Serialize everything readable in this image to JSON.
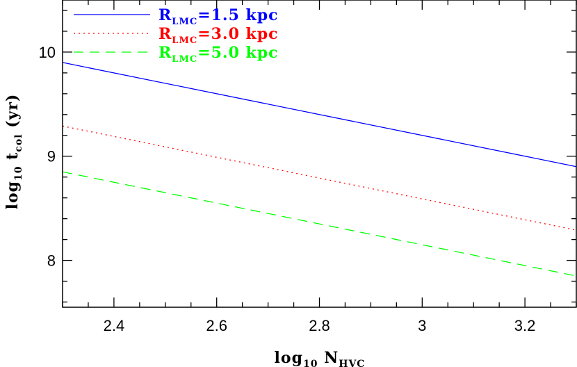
{
  "chart_data": {
    "type": "line",
    "xlabel": {
      "main": "log",
      "sub1": "10",
      "main2": " N",
      "sub2": "HVC"
    },
    "ylabel": {
      "main": "log",
      "sub1": "10",
      "main2": " t",
      "sub2": "col",
      "main3": " (yr)"
    },
    "xlim": [
      2.3,
      3.3
    ],
    "ylim": [
      7.55,
      10.5
    ],
    "xticks": [
      2.4,
      2.6,
      2.8,
      3.0,
      3.2
    ],
    "xtick_labels": [
      "2.4",
      "2.6",
      "2.8",
      "3",
      "3.2"
    ],
    "yticks": [
      8,
      9,
      10
    ],
    "ytick_labels": [
      "8",
      "9",
      "10"
    ],
    "x_minor_step": 0.05,
    "y_minor_step": 0.2,
    "grid": false,
    "legend_position": "top-left",
    "series": [
      {
        "label_main": "R",
        "label_sub": "LMC",
        "label_rest": "=1.5  kpc",
        "color": "#0000ff",
        "dash": "solid",
        "x": [
          2.3,
          3.3
        ],
        "y": [
          9.9,
          8.9
        ]
      },
      {
        "label_main": "R",
        "label_sub": "LMC",
        "label_rest": "=3.0  kpc",
        "color": "#ff0000",
        "dash": "dotted",
        "x": [
          2.3,
          3.3
        ],
        "y": [
          9.29,
          8.29
        ]
      },
      {
        "label_main": "R",
        "label_sub": "LMC",
        "label_rest": "=5.0  kpc",
        "color": "#00ff00",
        "dash": "dashed",
        "x": [
          2.3,
          3.3
        ],
        "y": [
          8.85,
          7.85
        ]
      }
    ]
  }
}
